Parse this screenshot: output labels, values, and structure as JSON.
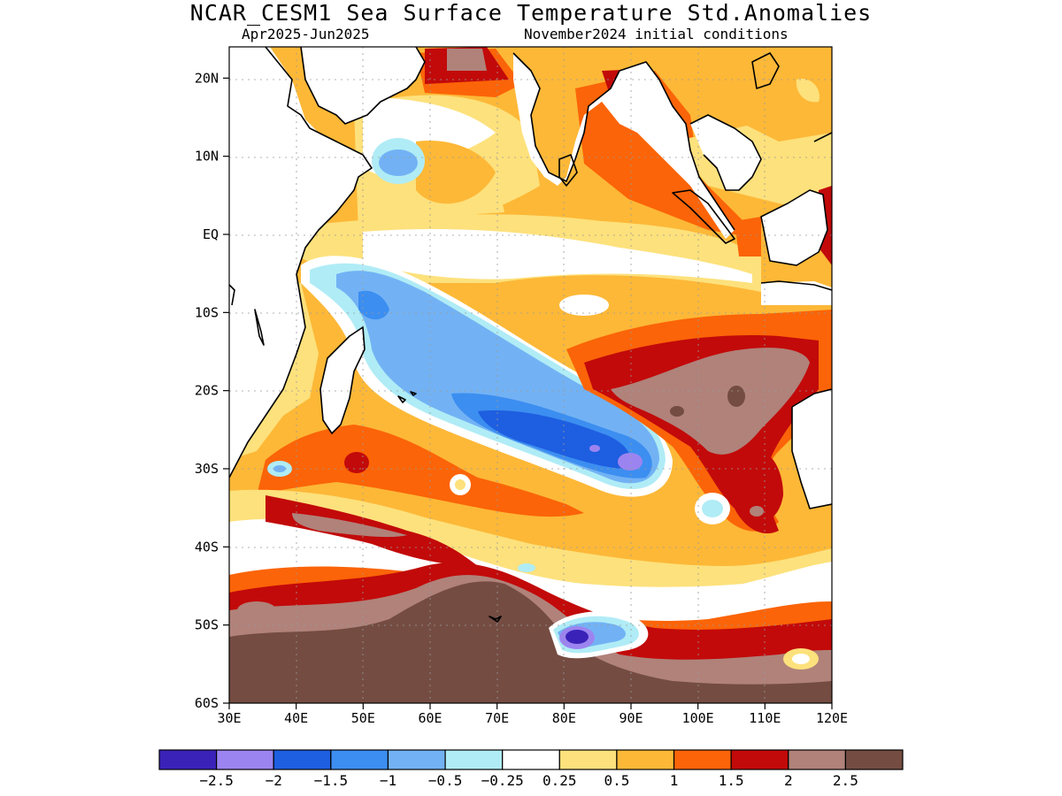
{
  "title": "NCAR_CESM1 Sea Surface Temperature Std.Anomalies",
  "subtitle_left": "Apr2025-Jun2025",
  "subtitle_right": "November2024 initial conditions",
  "map": {
    "lon_range": [
      30,
      120
    ],
    "lat_range": [
      -60,
      24
    ],
    "lat_ticks": [
      {
        "value": 20,
        "label": "20N"
      },
      {
        "value": 10,
        "label": "10N"
      },
      {
        "value": 0,
        "label": "EQ"
      },
      {
        "value": -10,
        "label": "10S"
      },
      {
        "value": -20,
        "label": "20S"
      },
      {
        "value": -30,
        "label": "30S"
      },
      {
        "value": -40,
        "label": "40S"
      },
      {
        "value": -50,
        "label": "50S"
      },
      {
        "value": -60,
        "label": "60S"
      }
    ],
    "lon_ticks": [
      {
        "value": 30,
        "label": "30E"
      },
      {
        "value": 40,
        "label": "40E"
      },
      {
        "value": 50,
        "label": "50E"
      },
      {
        "value": 60,
        "label": "60E"
      },
      {
        "value": 70,
        "label": "70E"
      },
      {
        "value": 80,
        "label": "80E"
      },
      {
        "value": 90,
        "label": "90E"
      },
      {
        "value": 100,
        "label": "100E"
      },
      {
        "value": 110,
        "label": "110E"
      },
      {
        "value": 120,
        "label": "120E"
      }
    ]
  },
  "colorbar": {
    "colors": [
      "#3a22b8",
      "#9c84f0",
      "#1e5ee0",
      "#3c8ef0",
      "#72b2f4",
      "#b0ecf6",
      "#ffffff",
      "#fde17c",
      "#fdb837",
      "#fb6408",
      "#c20a0a",
      "#b0827a",
      "#744c42"
    ],
    "labels": [
      "-2.5",
      "-2",
      "-1.5",
      "-1",
      "-0.5",
      "-0.25",
      "0.25",
      "0.5",
      "1",
      "1.5",
      "2",
      "2.5"
    ]
  },
  "chart_data": {
    "type": "heatmap",
    "title": "NCAR_CESM1 Sea Surface Temperature Std.Anomalies",
    "subtitle": "Apr2025-Jun2025 / November2024 initial conditions",
    "xlabel": "",
    "ylabel": "",
    "x_range": [
      30,
      120
    ],
    "y_range": [
      -60,
      24
    ],
    "grid": true,
    "features": [
      {
        "desc": "negative anomaly band",
        "lon": [
          47,
          95
        ],
        "lat": [
          -32,
          -5
        ],
        "min": -2.5
      },
      {
        "desc": "negative anomaly patch",
        "lon": [
          50,
          57
        ],
        "lat": [
          7,
          12
        ],
        "min": -1
      },
      {
        "desc": "negative anomaly patch",
        "lon": [
          79,
          90
        ],
        "lat": [
          -55,
          -48
        ],
        "min": -2.5
      },
      {
        "desc": "positive anomaly region",
        "lon": [
          86,
          112
        ],
        "lat": [
          -30,
          -15
        ],
        "max": 2.5
      },
      {
        "desc": "positive anomaly region",
        "lon": [
          30,
          120
        ],
        "lat": [
          -60,
          -44
        ],
        "max": 2.5
      },
      {
        "desc": "positive anomaly patch",
        "lon": [
          83,
          90
        ],
        "lat": [
          14,
          22
        ],
        "max": 2
      },
      {
        "desc": "positive anomaly patch",
        "lon": [
          58,
          68
        ],
        "lat": [
          20,
          24
        ],
        "max": 2.5
      }
    ]
  }
}
